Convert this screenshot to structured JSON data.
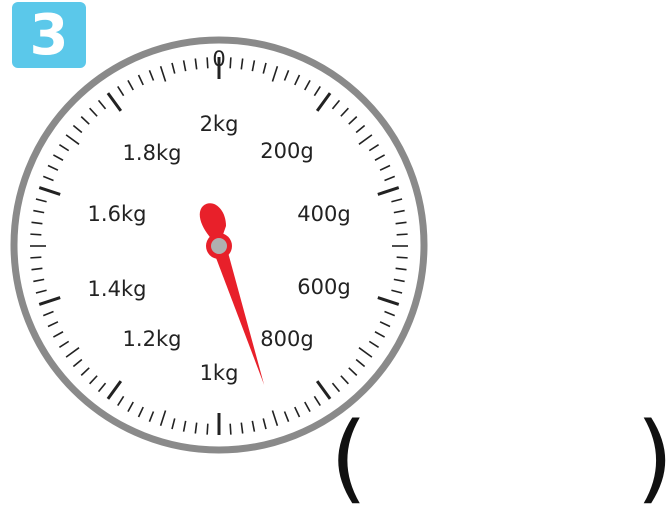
{
  "question": {
    "number": "3"
  },
  "dial": {
    "top_label": "0",
    "labels": [
      "2kg",
      "200g",
      "400g",
      "600g",
      "800g",
      "1kg",
      "1.2kg",
      "1.4kg",
      "1.6kg",
      "1.8kg"
    ],
    "max_grams": 2000,
    "minor_step_grams": 20,
    "pointer_grams": 900
  },
  "answer": {
    "open": "(",
    "close": ")",
    "value": ""
  },
  "colors": {
    "badge": "#5bc8ea",
    "rim": "#8a8a8a",
    "needle": "#e8202a",
    "hub": "#b0b0b0"
  }
}
